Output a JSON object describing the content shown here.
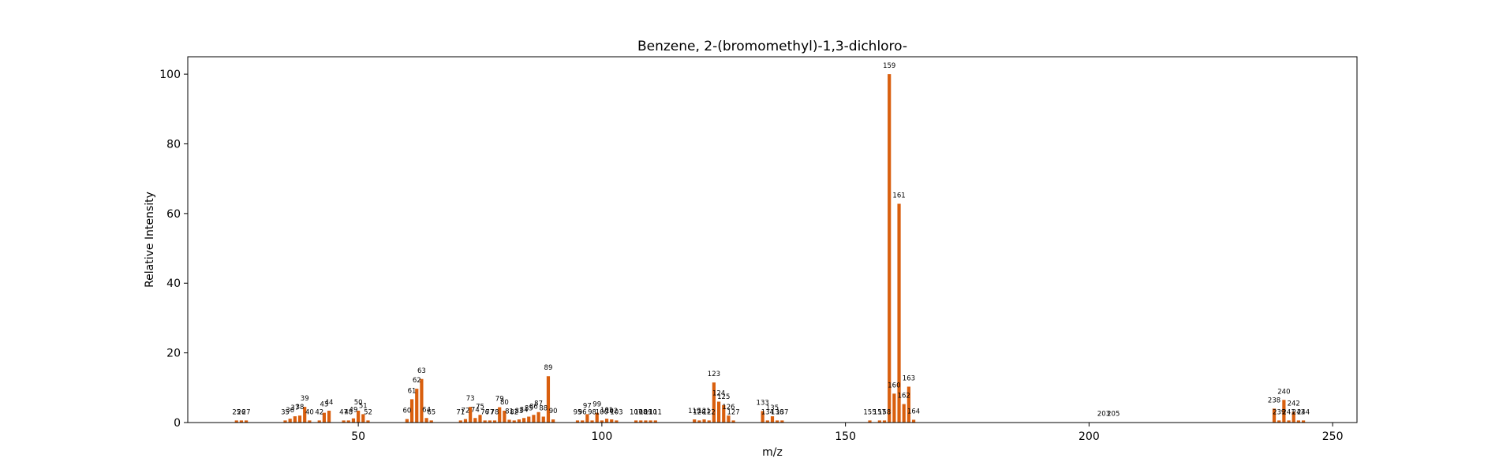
{
  "chart_data": {
    "type": "bar",
    "title": "Benzene, 2-(bromomethyl)-1,3-dichloro-",
    "xlabel": "m/z",
    "ylabel": "Relative Intensity",
    "xlim": [
      15,
      255
    ],
    "ylim": [
      0,
      105
    ],
    "xticks": [
      50,
      100,
      150,
      200,
      250
    ],
    "yticks": [
      0,
      20,
      40,
      60,
      80,
      100
    ],
    "grid": false,
    "bar_color": "#d95f0e",
    "peaks": [
      {
        "mz": 25,
        "intensity": 0.6
      },
      {
        "mz": 26,
        "intensity": 0.6
      },
      {
        "mz": 27,
        "intensity": 0.6
      },
      {
        "mz": 35,
        "intensity": 0.6
      },
      {
        "mz": 36,
        "intensity": 1.1
      },
      {
        "mz": 37,
        "intensity": 1.8
      },
      {
        "mz": 38,
        "intensity": 2.0
      },
      {
        "mz": 39,
        "intensity": 4.5
      },
      {
        "mz": 40,
        "intensity": 0.6
      },
      {
        "mz": 42,
        "intensity": 0.6
      },
      {
        "mz": 43,
        "intensity": 2.8
      },
      {
        "mz": 44,
        "intensity": 3.4
      },
      {
        "mz": 47,
        "intensity": 0.6
      },
      {
        "mz": 48,
        "intensity": 0.6
      },
      {
        "mz": 49,
        "intensity": 1.2
      },
      {
        "mz": 50,
        "intensity": 3.4
      },
      {
        "mz": 51,
        "intensity": 2.4
      },
      {
        "mz": 52,
        "intensity": 0.6
      },
      {
        "mz": 60,
        "intensity": 1.0
      },
      {
        "mz": 61,
        "intensity": 6.7
      },
      {
        "mz": 62,
        "intensity": 9.7
      },
      {
        "mz": 63,
        "intensity": 12.5
      },
      {
        "mz": 64,
        "intensity": 1.3
      },
      {
        "mz": 65,
        "intensity": 0.6
      },
      {
        "mz": 71,
        "intensity": 0.6
      },
      {
        "mz": 72,
        "intensity": 1.0
      },
      {
        "mz": 73,
        "intensity": 4.5
      },
      {
        "mz": 74,
        "intensity": 1.3
      },
      {
        "mz": 75,
        "intensity": 2.2
      },
      {
        "mz": 76,
        "intensity": 0.6
      },
      {
        "mz": 77,
        "intensity": 0.6
      },
      {
        "mz": 78,
        "intensity": 0.6
      },
      {
        "mz": 79,
        "intensity": 4.4
      },
      {
        "mz": 80,
        "intensity": 3.4
      },
      {
        "mz": 81,
        "intensity": 0.8
      },
      {
        "mz": 82,
        "intensity": 0.6
      },
      {
        "mz": 83,
        "intensity": 0.9
      },
      {
        "mz": 84,
        "intensity": 1.3
      },
      {
        "mz": 85,
        "intensity": 1.7
      },
      {
        "mz": 86,
        "intensity": 2.2
      },
      {
        "mz": 87,
        "intensity": 3.0
      },
      {
        "mz": 88,
        "intensity": 1.7
      },
      {
        "mz": 89,
        "intensity": 13.3
      },
      {
        "mz": 90,
        "intensity": 0.9
      },
      {
        "mz": 95,
        "intensity": 0.6
      },
      {
        "mz": 96,
        "intensity": 0.6
      },
      {
        "mz": 97,
        "intensity": 2.4
      },
      {
        "mz": 98,
        "intensity": 0.6
      },
      {
        "mz": 99,
        "intensity": 2.8
      },
      {
        "mz": 100,
        "intensity": 0.6
      },
      {
        "mz": 101,
        "intensity": 1.1
      },
      {
        "mz": 102,
        "intensity": 0.9
      },
      {
        "mz": 103,
        "intensity": 0.6
      },
      {
        "mz": 107,
        "intensity": 0.6
      },
      {
        "mz": 108,
        "intensity": 0.6
      },
      {
        "mz": 109,
        "intensity": 0.6
      },
      {
        "mz": 110,
        "intensity": 0.6
      },
      {
        "mz": 111,
        "intensity": 0.6
      },
      {
        "mz": 119,
        "intensity": 0.9
      },
      {
        "mz": 120,
        "intensity": 0.6
      },
      {
        "mz": 121,
        "intensity": 0.9
      },
      {
        "mz": 122,
        "intensity": 0.6
      },
      {
        "mz": 123,
        "intensity": 11.5
      },
      {
        "mz": 124,
        "intensity": 6.0
      },
      {
        "mz": 125,
        "intensity": 5.0
      },
      {
        "mz": 126,
        "intensity": 2.0
      },
      {
        "mz": 127,
        "intensity": 0.6
      },
      {
        "mz": 133,
        "intensity": 3.3
      },
      {
        "mz": 134,
        "intensity": 0.6
      },
      {
        "mz": 135,
        "intensity": 1.8
      },
      {
        "mz": 136,
        "intensity": 0.6
      },
      {
        "mz": 137,
        "intensity": 0.6
      },
      {
        "mz": 155,
        "intensity": 0.6
      },
      {
        "mz": 157,
        "intensity": 0.6
      },
      {
        "mz": 158,
        "intensity": 0.6
      },
      {
        "mz": 159,
        "intensity": 100.0
      },
      {
        "mz": 160,
        "intensity": 8.3
      },
      {
        "mz": 161,
        "intensity": 62.8
      },
      {
        "mz": 162,
        "intensity": 5.3
      },
      {
        "mz": 163,
        "intensity": 10.3
      },
      {
        "mz": 164,
        "intensity": 0.8
      },
      {
        "mz": 203,
        "intensity": 0.1
      },
      {
        "mz": 205,
        "intensity": 0.1
      },
      {
        "mz": 238,
        "intensity": 4.0
      },
      {
        "mz": 239,
        "intensity": 0.6
      },
      {
        "mz": 240,
        "intensity": 6.5
      },
      {
        "mz": 241,
        "intensity": 0.6
      },
      {
        "mz": 242,
        "intensity": 3.1
      },
      {
        "mz": 243,
        "intensity": 0.6
      },
      {
        "mz": 244,
        "intensity": 0.6
      }
    ]
  }
}
